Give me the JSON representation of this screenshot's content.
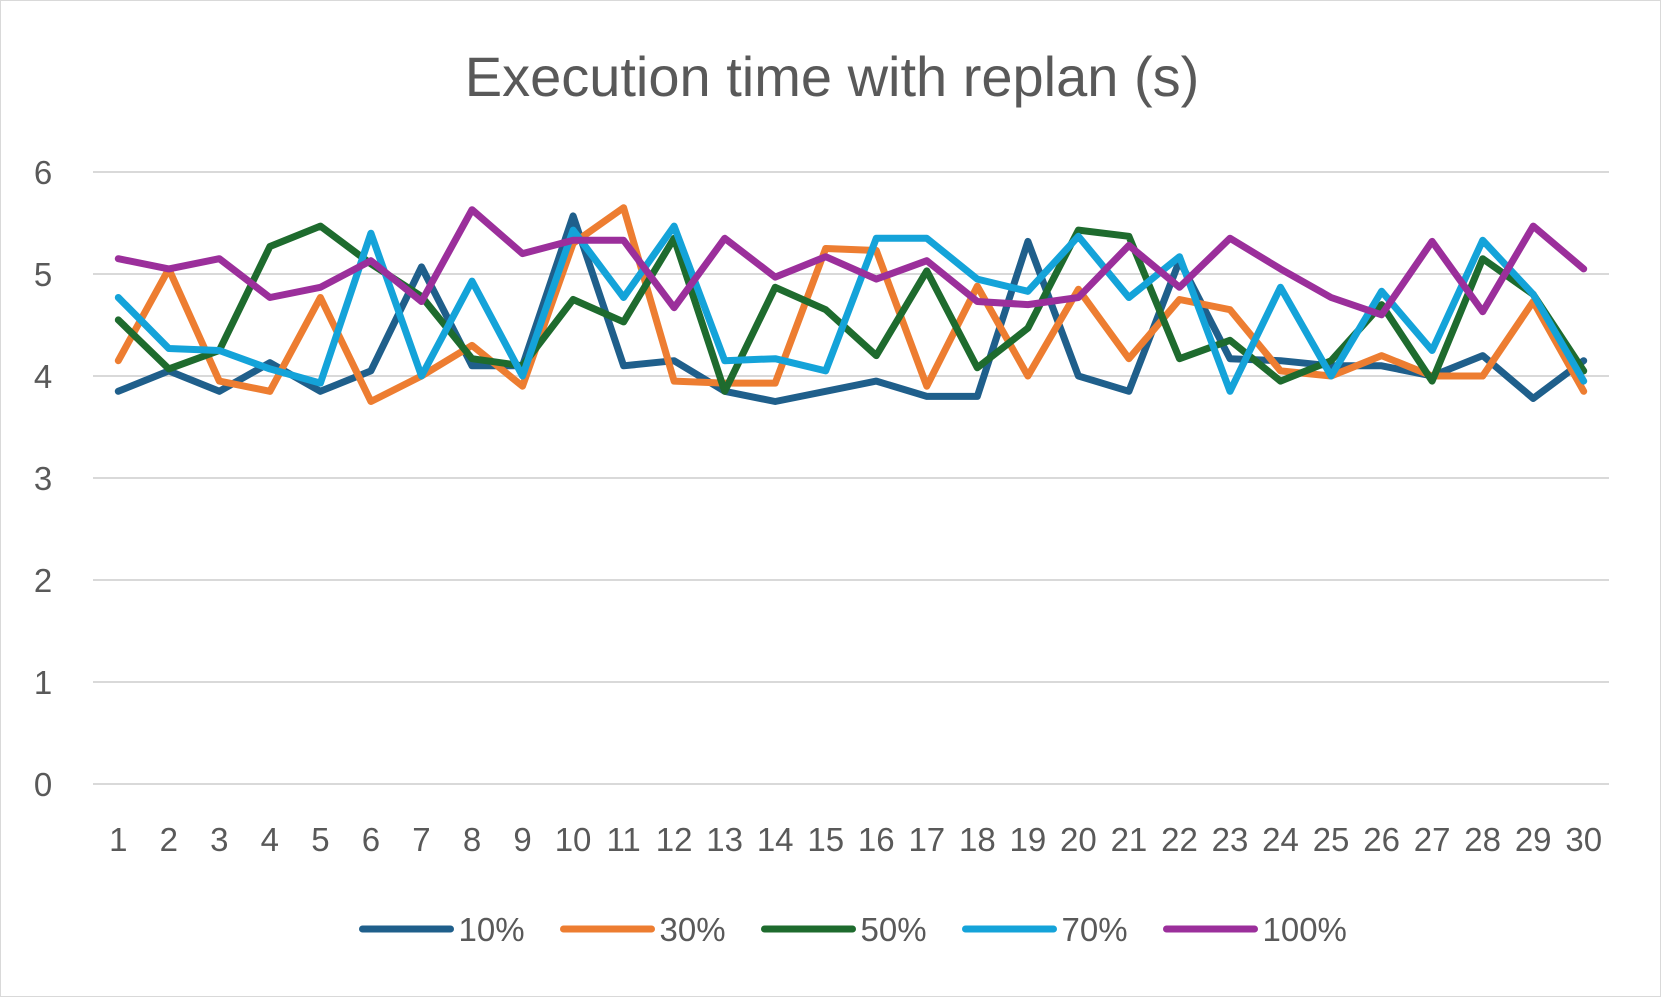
{
  "chart_data": {
    "type": "line",
    "title": "Execution time with replan (s)",
    "xlabel": "",
    "ylabel": "",
    "ylim": [
      0,
      6
    ],
    "yticks": [
      "0",
      "1",
      "2",
      "3",
      "4",
      "5",
      "6"
    ],
    "categories": [
      "1",
      "2",
      "3",
      "4",
      "5",
      "6",
      "7",
      "8",
      "9",
      "10",
      "11",
      "12",
      "13",
      "14",
      "15",
      "16",
      "17",
      "18",
      "19",
      "20",
      "21",
      "22",
      "23",
      "24",
      "25",
      "26",
      "27",
      "28",
      "29",
      "30"
    ],
    "grid": true,
    "legend_position": "bottom",
    "series": [
      {
        "name": "10%",
        "color": "#1f5f8b",
        "values": [
          3.85,
          4.05,
          3.85,
          4.13,
          3.85,
          4.05,
          5.07,
          4.1,
          4.1,
          5.57,
          4.1,
          4.15,
          3.85,
          3.75,
          3.85,
          3.95,
          3.8,
          3.8,
          5.32,
          4.0,
          3.85,
          5.13,
          4.17,
          4.15,
          4.1,
          4.1,
          4.0,
          4.2,
          3.78,
          4.15
        ]
      },
      {
        "name": "30%",
        "color": "#ed7d31",
        "values": [
          4.15,
          5.05,
          3.95,
          3.85,
          4.77,
          3.75,
          4.0,
          4.3,
          3.9,
          5.3,
          5.65,
          3.95,
          3.93,
          3.93,
          5.25,
          5.23,
          3.9,
          4.88,
          4.0,
          4.85,
          4.17,
          4.75,
          4.65,
          4.05,
          4.0,
          4.2,
          4.0,
          4.0,
          4.73,
          3.85
        ]
      },
      {
        "name": "50%",
        "color": "#1e6b2e",
        "values": [
          4.55,
          4.07,
          4.25,
          5.27,
          5.47,
          5.1,
          4.78,
          4.17,
          4.1,
          4.75,
          4.53,
          5.35,
          3.85,
          4.87,
          4.65,
          4.2,
          5.03,
          4.08,
          4.47,
          5.43,
          5.37,
          4.17,
          4.35,
          3.95,
          4.15,
          4.7,
          3.95,
          5.15,
          4.8,
          4.05
        ]
      },
      {
        "name": "70%",
        "color": "#14a3d9",
        "values": [
          4.77,
          4.27,
          4.25,
          4.07,
          3.93,
          5.4,
          4.0,
          4.93,
          4.0,
          5.43,
          4.77,
          5.47,
          4.15,
          4.17,
          4.05,
          5.35,
          5.35,
          4.95,
          4.83,
          5.37,
          4.77,
          5.17,
          3.85,
          4.87,
          4.0,
          4.83,
          4.25,
          5.33,
          4.8,
          3.95
        ]
      },
      {
        "name": "100%",
        "color": "#9b2f9b",
        "values": [
          5.15,
          5.05,
          5.15,
          4.77,
          4.87,
          5.13,
          4.73,
          5.63,
          5.2,
          5.33,
          5.33,
          4.67,
          5.35,
          4.97,
          5.17,
          4.95,
          5.13,
          4.73,
          4.7,
          4.77,
          5.28,
          4.87,
          5.35,
          5.05,
          4.77,
          4.6,
          5.32,
          4.63,
          5.47,
          5.05
        ]
      }
    ]
  }
}
